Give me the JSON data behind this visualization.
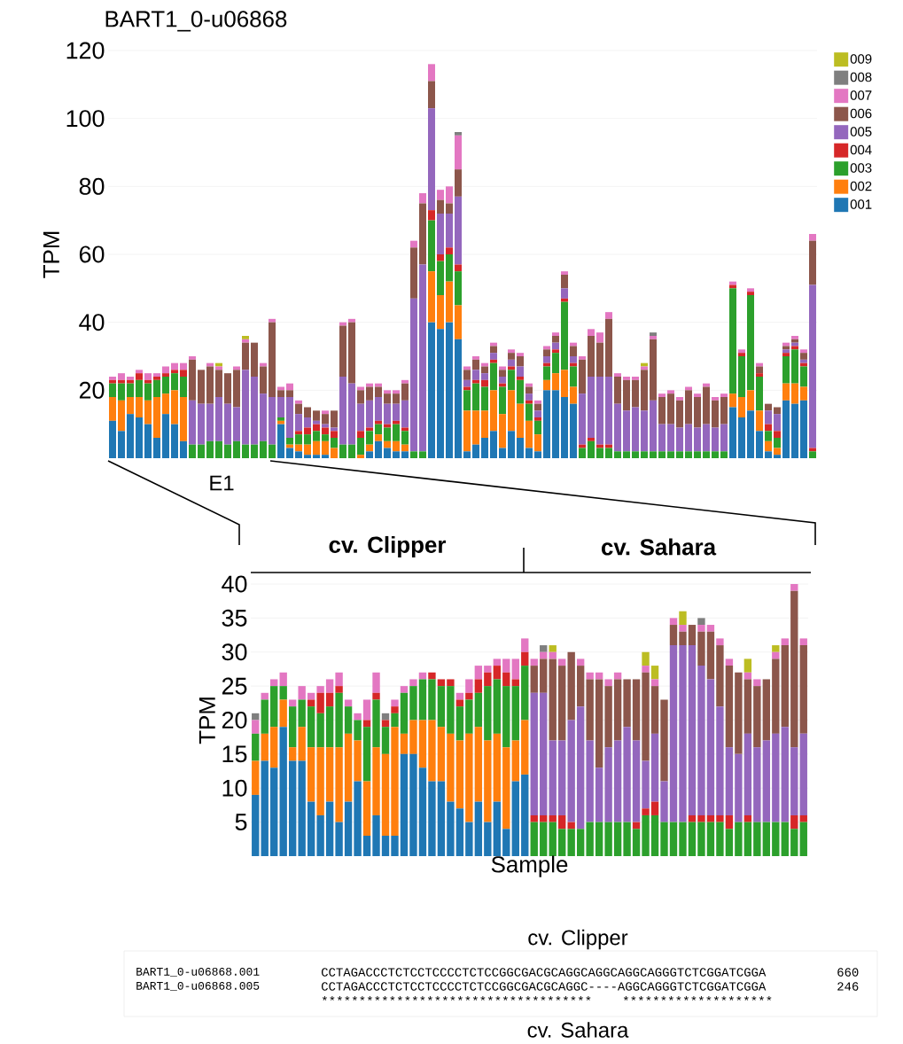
{
  "chart_data": [
    {
      "type": "bar",
      "stacked": true,
      "title": "BART1_0-u06868",
      "ylabel": "TPM",
      "annotations": [
        "E1"
      ],
      "ylim": [
        0,
        120
      ],
      "yticks": [
        20,
        40,
        60,
        80,
        100,
        120
      ],
      "grid": "y",
      "legend": "right",
      "categories": [
        null,
        null,
        null,
        null,
        null,
        null,
        null,
        null,
        null,
        null,
        null,
        null,
        null,
        null,
        null,
        null,
        null,
        null,
        null,
        null,
        null,
        null,
        null,
        null,
        null,
        null,
        null,
        null,
        null,
        null,
        null,
        null,
        null,
        null,
        null,
        null,
        null,
        null,
        null,
        null,
        null,
        null,
        null,
        null,
        null,
        null,
        null,
        null,
        null,
        null,
        null,
        null,
        null,
        null,
        null,
        null,
        null,
        null,
        null,
        null,
        null,
        null,
        null,
        null,
        null,
        null,
        null,
        null,
        null,
        null,
        null,
        null,
        null,
        null,
        null,
        null,
        null,
        null,
        null,
        null
      ],
      "series": [
        {
          "name": "001",
          "color": "#1f77b4",
          "values": [
            11,
            8,
            13,
            12,
            10,
            6,
            13,
            10,
            5,
            0,
            0,
            0,
            0,
            0,
            0,
            0,
            0,
            0,
            0,
            10,
            3,
            2,
            1,
            1,
            1,
            0,
            0,
            0,
            0,
            2,
            5,
            3,
            2,
            2,
            0,
            0,
            40,
            38,
            40,
            35,
            2,
            4,
            6,
            8,
            3,
            8,
            6,
            3,
            2,
            20,
            20,
            18,
            16,
            0,
            0,
            0,
            0,
            0,
            0,
            0,
            0,
            0,
            0,
            0,
            0,
            0,
            0,
            0,
            0,
            0,
            15,
            12,
            14,
            8,
            2,
            1,
            17,
            16,
            17,
            0
          ]
        },
        {
          "name": "002",
          "color": "#ff7f0e",
          "values": [
            7,
            9,
            5,
            6,
            7,
            12,
            6,
            10,
            13,
            0,
            0,
            0,
            0,
            0,
            0,
            0,
            0,
            0,
            0,
            1,
            1,
            2,
            3,
            4,
            4,
            3,
            0,
            0,
            1,
            2,
            2,
            2,
            3,
            2,
            0,
            0,
            15,
            10,
            12,
            10,
            12,
            10,
            8,
            12,
            10,
            12,
            10,
            8,
            5,
            3,
            5,
            8,
            5,
            0,
            0,
            0,
            0,
            0,
            0,
            0,
            0,
            0,
            0,
            0,
            0,
            0,
            0,
            0,
            0,
            0,
            4,
            6,
            6,
            6,
            3,
            2,
            5,
            6,
            4,
            0
          ]
        },
        {
          "name": "003",
          "color": "#2ca02c",
          "values": [
            4,
            5,
            4,
            5,
            5,
            5,
            5,
            5,
            6,
            4,
            4,
            5,
            5,
            4,
            5,
            4,
            4,
            5,
            4,
            1,
            2,
            3,
            3,
            3,
            2,
            3,
            4,
            4,
            5,
            4,
            3,
            4,
            5,
            4,
            2,
            2,
            15,
            10,
            8,
            10,
            6,
            8,
            7,
            8,
            8,
            6,
            7,
            5,
            4,
            4,
            6,
            20,
            6,
            3,
            5,
            3,
            3,
            2,
            2,
            2,
            2,
            2,
            2,
            2,
            2,
            2,
            2,
            2,
            2,
            2,
            31,
            12,
            28,
            10,
            3,
            3,
            8,
            10,
            6,
            2
          ]
        },
        {
          "name": "004",
          "color": "#d62728",
          "values": [
            1,
            1,
            1,
            2,
            1,
            1,
            1,
            1,
            2,
            0,
            0,
            0,
            0,
            0,
            0,
            0,
            0,
            0,
            0,
            0,
            0,
            1,
            2,
            2,
            2,
            2,
            0,
            0,
            2,
            1,
            1,
            1,
            1,
            1,
            0,
            0,
            3,
            2,
            2,
            2,
            1,
            1,
            2,
            1,
            1,
            1,
            1,
            1,
            1,
            1,
            1,
            1,
            1,
            1,
            1,
            1,
            1,
            0,
            0,
            0,
            0,
            0,
            0,
            0,
            0,
            0,
            0,
            0,
            0,
            0,
            1,
            1,
            1,
            1,
            2,
            2,
            1,
            1,
            1,
            1
          ]
        },
        {
          "name": "005",
          "color": "#9467bd",
          "values": [
            0,
            0,
            0,
            0,
            0,
            0,
            0,
            0,
            0,
            13,
            12,
            11,
            13,
            12,
            10,
            22,
            20,
            14,
            14,
            6,
            12,
            5,
            3,
            1,
            1,
            1,
            20,
            18,
            8,
            8,
            7,
            6,
            5,
            8,
            45,
            55,
            30,
            12,
            10,
            20,
            2,
            3,
            2,
            2,
            2,
            2,
            3,
            2,
            2,
            2,
            2,
            3,
            2,
            15,
            18,
            20,
            20,
            14,
            12,
            13,
            12,
            15,
            8,
            8,
            7,
            8,
            7,
            8,
            7,
            8,
            0,
            0,
            0,
            0,
            4,
            5,
            1,
            1,
            1,
            48
          ]
        },
        {
          "name": "006",
          "color": "#8c564b",
          "values": [
            0,
            0,
            0,
            0,
            0,
            0,
            0,
            0,
            0,
            12,
            10,
            11,
            8,
            9,
            11,
            8,
            10,
            8,
            22,
            2,
            2,
            3,
            3,
            3,
            3,
            5,
            15,
            18,
            4,
            4,
            3,
            3,
            3,
            5,
            15,
            18,
            8,
            4,
            3,
            8,
            3,
            3,
            2,
            2,
            2,
            2,
            3,
            2,
            2,
            2,
            2,
            4,
            3,
            10,
            12,
            10,
            17,
            8,
            9,
            8,
            12,
            18,
            8,
            9,
            8,
            10,
            9,
            11,
            8,
            8,
            0,
            0,
            0,
            2,
            2,
            2,
            1,
            1,
            2,
            13
          ]
        },
        {
          "name": "007",
          "color": "#e377c2",
          "values": [
            1,
            2,
            1,
            1,
            2,
            1,
            2,
            2,
            2,
            1,
            0,
            1,
            1,
            0,
            1,
            1,
            0,
            1,
            1,
            1,
            2,
            1,
            0,
            0,
            1,
            0,
            1,
            1,
            1,
            1,
            1,
            1,
            1,
            1,
            2,
            3,
            5,
            3,
            5,
            10,
            1,
            1,
            1,
            1,
            1,
            1,
            1,
            1,
            1,
            1,
            1,
            1,
            1,
            1,
            2,
            3,
            2,
            1,
            1,
            1,
            1,
            1,
            1,
            1,
            1,
            1,
            1,
            1,
            1,
            1,
            1,
            1,
            1,
            1,
            0,
            0,
            1,
            1,
            1,
            2
          ]
        },
        {
          "name": "008",
          "color": "#7f7f7f",
          "values": [
            0,
            0,
            0,
            0,
            0,
            0,
            0,
            0,
            0,
            0,
            0,
            0,
            0,
            0,
            0,
            0,
            0,
            0,
            0,
            0,
            0,
            0,
            0,
            0,
            0,
            0,
            0,
            0,
            0,
            0,
            0,
            0,
            0,
            0,
            0,
            0,
            0,
            0,
            0,
            1,
            0,
            0,
            0,
            0,
            0,
            0,
            0,
            0,
            0,
            0,
            0,
            0,
            0,
            0,
            0,
            0,
            0,
            0,
            0,
            0,
            0,
            1,
            0,
            0,
            0,
            0,
            0,
            0,
            0,
            0,
            0,
            0,
            0,
            0,
            0,
            0,
            0,
            0,
            0,
            0
          ]
        },
        {
          "name": "009",
          "color": "#bcbd22",
          "values": [
            0,
            0,
            0,
            0,
            0,
            0,
            0,
            0,
            0,
            0,
            0,
            0,
            1,
            0,
            0,
            1,
            0,
            0,
            0,
            0,
            0,
            0,
            0,
            0,
            0,
            0,
            0,
            0,
            0,
            0,
            0,
            0,
            0,
            0,
            0,
            0,
            0,
            0,
            0,
            0,
            0,
            0,
            0,
            0,
            0,
            0,
            0,
            0,
            0,
            0,
            0,
            0,
            0,
            0,
            0,
            0,
            0,
            0,
            0,
            0,
            1,
            0,
            0,
            0,
            0,
            0,
            0,
            0,
            0,
            0,
            0,
            0,
            0,
            0,
            0,
            0,
            0,
            0,
            0,
            0
          ]
        }
      ]
    },
    {
      "type": "bar",
      "stacked": true,
      "xlabel": "Sample",
      "ylabel": "TPM",
      "ylim": [
        0,
        40
      ],
      "yticks": [
        5,
        10,
        15,
        20,
        25,
        30,
        35,
        40
      ],
      "grid": "y",
      "annotations": [
        "cv. Clipper",
        "cv. Sahara",
        "cv. Clipper",
        "BART1_0-u06868.001",
        "CCTAGACCCTCTCCTCCCCTCTCCGGCGACGCAGGCAGGCAGGCAGGGTCTCGGATCGGA",
        "660",
        "BART1_0-u06868.005",
        "CCTAGACCCTCTCCTCCCCTCTCCGGCGACGCAGGC----AGGCAGGGTCTCGGATCGGA",
        "246",
        "*",
        "*",
        "*",
        "*",
        "*",
        "*",
        "*",
        "*",
        "*",
        "*",
        "*",
        "*",
        "*",
        "*",
        "*",
        "*",
        "*",
        "*",
        "*",
        "*",
        "*",
        "*",
        "*",
        "*",
        "*",
        "*",
        "*",
        "*",
        "*",
        "*",
        "*",
        "*",
        "*",
        "*",
        "*",
        "*",
        "*",
        "*",
        "*",
        "*",
        "*",
        "*",
        "*",
        "*",
        "*",
        "*",
        "*",
        "*",
        "*",
        "*",
        "*",
        "*",
        "*",
        "*",
        "*",
        "*",
        "cv. Sahara"
      ],
      "categories": [
        null,
        null,
        null,
        null,
        null,
        null,
        null,
        null,
        null,
        null,
        null,
        null,
        null,
        null,
        null,
        null,
        null,
        null,
        null,
        null,
        null,
        null,
        null,
        null,
        null,
        null,
        null,
        null,
        null,
        null,
        null,
        null,
        null,
        null,
        null,
        null,
        null,
        null,
        null,
        null,
        null,
        null,
        null,
        null,
        null,
        null,
        null,
        null,
        null,
        null,
        null,
        null,
        null,
        null,
        null,
        null,
        null,
        null,
        null,
        null
      ],
      "series": [
        {
          "color": "#1f77b4",
          "values": [
            9,
            14,
            13,
            19,
            14,
            14,
            8,
            6,
            8,
            5,
            8,
            11,
            3,
            6,
            3,
            3,
            15,
            15,
            13,
            11,
            11,
            8,
            7,
            5,
            8,
            5,
            8,
            4,
            11,
            12,
            0,
            0,
            0,
            0,
            0,
            0,
            0,
            0,
            0,
            0,
            0,
            0,
            0,
            0,
            0,
            0,
            0,
            0,
            0,
            0,
            0,
            0,
            0,
            0,
            0,
            0,
            0,
            0,
            0,
            0
          ]
        },
        {
          "color": "#ff7f0e",
          "values": [
            5,
            4,
            6,
            4,
            2,
            5,
            8,
            10,
            8,
            11,
            10,
            6,
            8,
            10,
            12,
            16,
            3,
            5,
            7,
            9,
            8,
            10,
            10,
            13,
            11,
            12,
            10,
            12,
            6,
            8,
            0,
            0,
            0,
            0,
            0,
            0,
            0,
            0,
            0,
            0,
            0,
            0,
            0,
            0,
            0,
            0,
            0,
            0,
            0,
            0,
            0,
            0,
            0,
            0,
            0,
            0,
            0,
            0,
            0,
            0
          ]
        },
        {
          "color": "#2ca02c",
          "values": [
            4,
            5,
            6,
            2,
            6,
            4,
            6,
            5,
            6,
            8,
            4,
            3,
            8,
            7,
            4,
            2,
            6,
            5,
            6,
            6,
            6,
            7,
            5,
            5,
            5,
            8,
            8,
            9,
            8,
            8,
            5,
            5,
            5,
            4,
            4,
            4,
            5,
            5,
            5,
            5,
            5,
            4,
            6,
            6,
            5,
            5,
            5,
            5,
            5,
            5,
            5,
            4,
            5,
            5,
            5,
            5,
            5,
            5,
            4,
            5
          ]
        },
        {
          "color": "#d62728",
          "values": [
            0,
            0,
            0,
            0,
            0,
            0,
            1,
            3,
            2,
            1,
            0,
            0,
            1,
            1,
            1,
            1,
            0,
            0,
            0,
            1,
            1,
            1,
            1,
            1,
            2,
            2,
            2,
            2,
            1,
            2,
            1,
            1,
            1,
            2,
            1,
            0,
            0,
            0,
            0,
            0,
            0,
            1,
            1,
            2,
            0,
            0,
            0,
            1,
            1,
            1,
            1,
            2,
            0,
            1,
            0,
            0,
            0,
            0,
            2,
            1
          ]
        },
        {
          "color": "#9467bd",
          "values": [
            0,
            0,
            0,
            0,
            0,
            0,
            0,
            0,
            0,
            0,
            0,
            0,
            0,
            0,
            0,
            0,
            0,
            0,
            0,
            0,
            0,
            0,
            0,
            0,
            0,
            0,
            0,
            0,
            0,
            0,
            18,
            18,
            11,
            11,
            15,
            18,
            12,
            8,
            11,
            12,
            14,
            12,
            7,
            10,
            6,
            26,
            26,
            25,
            22,
            20,
            16,
            10,
            10,
            12,
            11,
            12,
            13,
            14,
            10,
            12
          ]
        },
        {
          "color": "#8c564b",
          "values": [
            0,
            0,
            0,
            0,
            0,
            0,
            0,
            0,
            0,
            0,
            0,
            0,
            0,
            0,
            0,
            0,
            0,
            0,
            0,
            0,
            0,
            0,
            0,
            0,
            0,
            0,
            0,
            0,
            0,
            0,
            4,
            5,
            12,
            11,
            10,
            6,
            9,
            13,
            9,
            9,
            7,
            9,
            13,
            7,
            12,
            3,
            2,
            3,
            5,
            7,
            9,
            12,
            12,
            8,
            9,
            9,
            11,
            12,
            23,
            13
          ]
        },
        {
          "color": "#e377c2",
          "values": [
            2,
            1,
            1,
            2,
            1,
            2,
            1,
            1,
            2,
            2,
            1,
            1,
            3,
            3,
            0,
            1,
            1,
            1,
            1,
            0,
            0,
            0,
            1,
            2,
            2,
            1,
            1,
            2,
            3,
            2,
            1,
            1,
            1,
            1,
            0,
            1,
            1,
            1,
            1,
            1,
            0,
            0,
            1,
            1,
            0,
            1,
            1,
            0,
            1,
            1,
            1,
            1,
            0,
            1,
            1,
            0,
            1,
            1,
            1,
            1
          ]
        },
        {
          "color": "#7f7f7f",
          "values": [
            1,
            0,
            0,
            0,
            0,
            0,
            0,
            0,
            0,
            0,
            0,
            0,
            0,
            0,
            1,
            0,
            0,
            0,
            0,
            0,
            0,
            0,
            0,
            0,
            0,
            0,
            0,
            0,
            0,
            0,
            0,
            1,
            0,
            0,
            0,
            0,
            0,
            0,
            0,
            0,
            0,
            0,
            0,
            0,
            0,
            0,
            0,
            0,
            1,
            0,
            0,
            0,
            0,
            0,
            0,
            0,
            0,
            0,
            0,
            0
          ]
        },
        {
          "color": "#bcbd22",
          "values": [
            0,
            0,
            0,
            0,
            0,
            0,
            0,
            0,
            0,
            0,
            0,
            0,
            0,
            0,
            0,
            0,
            0,
            0,
            0,
            0,
            0,
            0,
            0,
            0,
            0,
            0,
            0,
            0,
            0,
            0,
            0,
            0,
            1,
            0,
            0,
            0,
            0,
            0,
            0,
            0,
            0,
            0,
            2,
            2,
            0,
            0,
            2,
            0,
            0,
            0,
            0,
            0,
            0,
            2,
            0,
            0,
            1,
            0,
            0,
            0
          ]
        }
      ]
    }
  ]
}
